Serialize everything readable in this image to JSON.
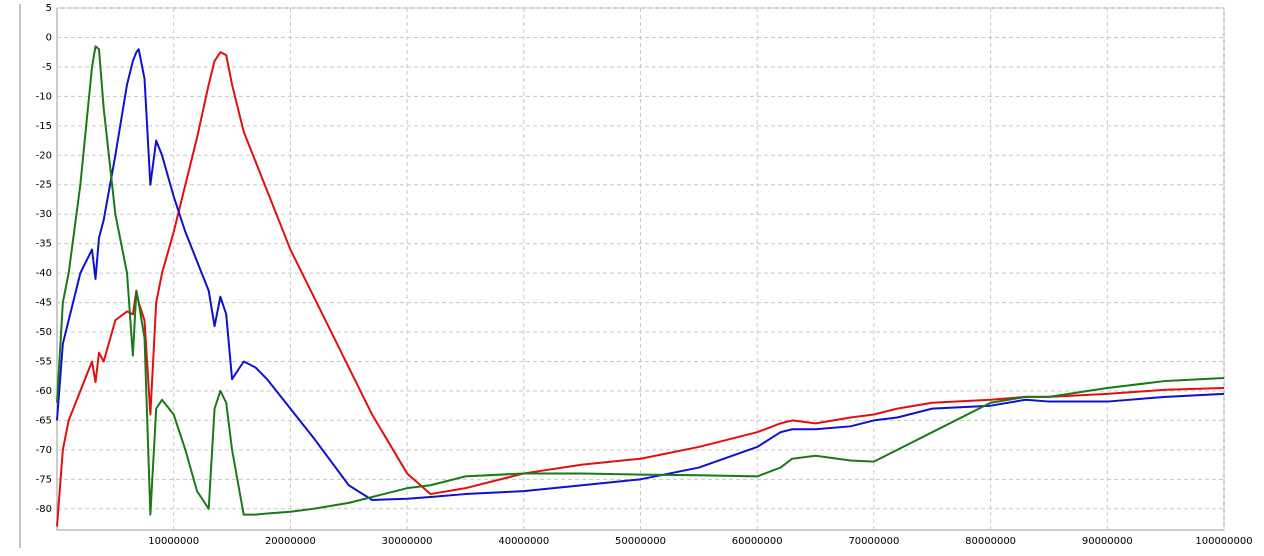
{
  "chart_data": {
    "type": "line",
    "x": [
      0,
      500000,
      1000000,
      2000000,
      3000000,
      3300000,
      3600000,
      4000000,
      5000000,
      6000000,
      6500000,
      6800000,
      7000000,
      7500000,
      8000000,
      8500000,
      9000000,
      10000000,
      11000000,
      12000000,
      13000000,
      13500000,
      14000000,
      14500000,
      15000000,
      16000000,
      17000000,
      18000000,
      20000000,
      22000000,
      25000000,
      27000000,
      30000000,
      32000000,
      35000000,
      40000000,
      45000000,
      50000000,
      55000000,
      60000000,
      62000000,
      63000000,
      65000000,
      68000000,
      70000000,
      72000000,
      75000000,
      80000000,
      83000000,
      85000000,
      90000000,
      95000000,
      100000000
    ],
    "series": [
      {
        "color": "#e01010",
        "values": [
          -83,
          -70,
          -65,
          -60,
          -55,
          -58.5,
          -53.5,
          -55,
          -48,
          -46.5,
          -47,
          -43,
          -45,
          -48,
          -64,
          -45,
          -40,
          -33,
          -25,
          -17,
          -8,
          -4,
          -2.5,
          -3,
          -8,
          -16,
          -21,
          -26,
          -36,
          -44,
          -56,
          -64,
          -74,
          -77.5,
          -76.5,
          -74,
          -72.5,
          -71.5,
          -69.5,
          -67,
          -65.5,
          -65,
          -65.5,
          -64.5,
          -64,
          -63,
          -62,
          -61.5,
          -61,
          -61,
          -60.5,
          -59.8,
          -59.5
        ]
      },
      {
        "color": "#1010d0",
        "values": [
          -65,
          -52,
          -48,
          -40,
          -36,
          -41,
          -34,
          -31,
          -20,
          -8,
          -4,
          -2.5,
          -2,
          -7,
          -25,
          -17.5,
          -20,
          -27,
          -33,
          -38,
          -43,
          -49,
          -44,
          -47,
          -58,
          -55,
          -56,
          -58,
          -63,
          -68,
          -76,
          -78.5,
          -78.3,
          -78,
          -77.5,
          -77,
          -76,
          -75,
          -73,
          -69.5,
          -67,
          -66.5,
          -66.5,
          -66,
          -65,
          -64.5,
          -63,
          -62.5,
          -61.5,
          -61.8,
          -61.8,
          -61,
          -60.5
        ]
      },
      {
        "color": "#1a7a1a",
        "values": [
          -62,
          -45,
          -40,
          -25,
          -5,
          -1.5,
          -2,
          -12,
          -30,
          -40,
          -54,
          -43,
          -45,
          -51,
          -81,
          -63,
          -61.5,
          -64,
          -70,
          -77,
          -80,
          -63,
          -60,
          -62,
          -70,
          -81,
          -81,
          -80.8,
          -80.5,
          -80,
          -79,
          -78,
          -76.5,
          -76,
          -74.5,
          -74,
          -74,
          -74.2,
          -74.3,
          -74.5,
          -73,
          -71.5,
          -71,
          -71.8,
          -72,
          -70,
          -67,
          -62,
          -61,
          -61,
          -59.5,
          -58.3,
          -57.8
        ]
      }
    ],
    "xlim": [
      0,
      100000000
    ],
    "xticks": [
      10000000,
      20000000,
      30000000,
      40000000,
      50000000,
      60000000,
      70000000,
      80000000,
      90000000,
      100000000
    ],
    "ylim": [
      -83.6,
      5
    ],
    "yticks": [
      5,
      0,
      -5,
      -10,
      -15,
      -20,
      -25,
      -30,
      -35,
      -40,
      -45,
      -50,
      -55,
      -60,
      -65,
      -70,
      -75,
      -80
    ],
    "grid": true
  }
}
